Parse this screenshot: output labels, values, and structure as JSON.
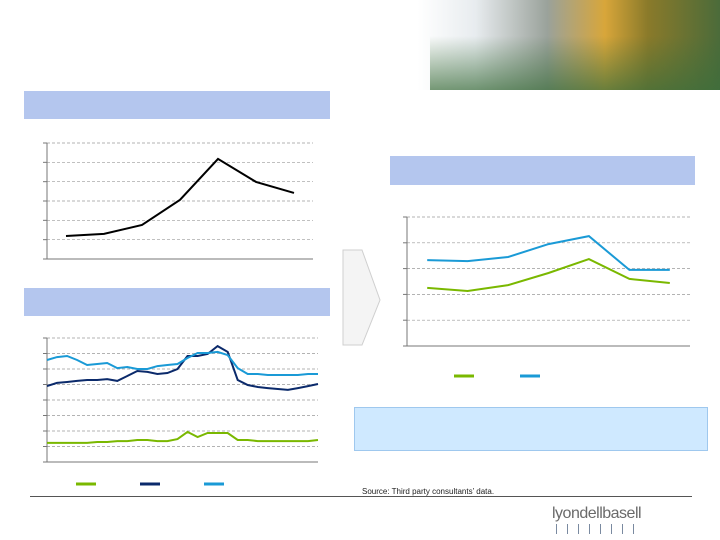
{
  "chart_data": [
    {
      "type": "line",
      "categories": [
        null,
        null,
        null,
        null,
        null,
        null,
        null
      ],
      "series": [
        {
          "color": "#000000",
          "values": [
            1.19,
            1.3,
            1.76,
            3.06,
            5.18,
            3.99,
            3.42
          ]
        }
      ],
      "ylim": [
        0,
        6
      ],
      "yticks": [
        0,
        1,
        2,
        3,
        4,
        5,
        6
      ],
      "grid": true
    },
    {
      "type": "line",
      "categories": [
        null,
        null,
        null,
        null,
        null,
        null,
        null,
        null,
        null,
        null,
        null,
        null,
        null,
        null,
        null,
        null,
        null,
        null,
        null,
        null,
        null,
        null,
        null,
        null,
        null,
        null,
        null,
        null
      ],
      "series": [
        {
          "color": "#7ab800",
          "values": [
            1.23,
            1.23,
            1.23,
            1.23,
            1.23,
            1.29,
            1.29,
            1.35,
            1.35,
            1.42,
            1.42,
            1.35,
            1.35,
            1.48,
            1.94,
            1.61,
            1.87,
            1.87,
            1.87,
            1.42,
            1.42,
            1.35,
            1.35,
            1.35,
            1.35,
            1.35,
            1.35,
            1.42
          ]
        },
        {
          "color": "#0b2a6b",
          "values": [
            4.9,
            5.1,
            5.16,
            5.23,
            5.29,
            5.29,
            5.35,
            5.23,
            5.55,
            5.87,
            5.81,
            5.68,
            5.74,
            6.0,
            6.84,
            6.84,
            6.97,
            7.48,
            7.1,
            5.29,
            4.97,
            4.84,
            4.77,
            4.71,
            4.65,
            4.77,
            4.9,
            5.03
          ]
        },
        {
          "color": "#1a9ad6",
          "values": [
            6.58,
            6.77,
            6.84,
            6.58,
            6.26,
            6.32,
            6.39,
            6.06,
            6.13,
            6.0,
            6.0,
            6.19,
            6.26,
            6.32,
            6.71,
            7.03,
            7.03,
            7.1,
            6.9,
            6.06,
            5.68,
            5.68,
            5.61,
            5.61,
            5.61,
            5.61,
            5.68,
            5.68
          ]
        }
      ],
      "ylim": [
        0,
        8
      ],
      "yticks": [
        0,
        1,
        2,
        3,
        4,
        5,
        6,
        7,
        8
      ],
      "grid": true
    },
    {
      "type": "line",
      "categories": [
        null,
        null,
        null,
        null,
        null,
        null,
        null
      ],
      "series": [
        {
          "color": "#7ab800",
          "values": [
            2.25,
            2.13,
            2.36,
            2.83,
            3.37,
            2.6,
            2.44
          ]
        },
        {
          "color": "#1a9ad6",
          "values": [
            3.33,
            3.29,
            3.45,
            3.95,
            4.26,
            2.95,
            2.95
          ]
        }
      ],
      "ylim": [
        0,
        5
      ],
      "yticks": [
        0,
        1,
        2,
        3,
        4,
        5
      ],
      "grid": true
    }
  ],
  "footer": {
    "source": "Source: Third party consultants’ data.",
    "logo": "lyondellbasell"
  }
}
